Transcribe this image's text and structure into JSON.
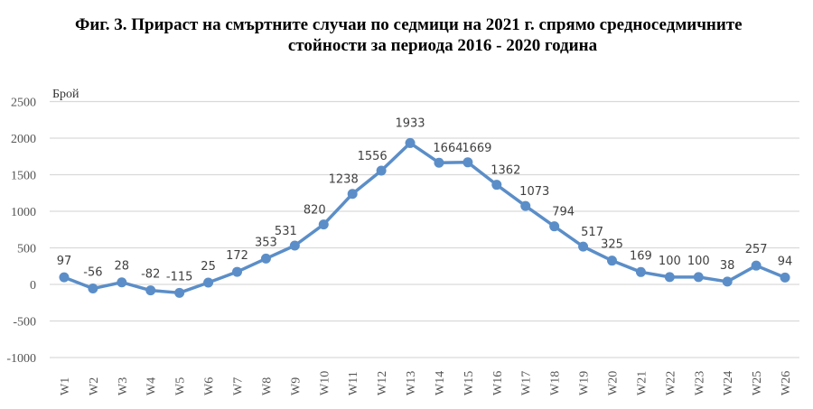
{
  "title_line1": "Фиг. 3. Прираст на смъртните случаи по седмици на 2021 г. спрямо средноседмичните",
  "title_line2": "стойности за периода 2016 - 2020 година",
  "chart_data": {
    "type": "line",
    "title": "Фиг. 3. Прираст на смъртните случаи по седмици на 2021 г. спрямо средноседмичните стойности за периода 2016 - 2020 година",
    "ylabel": "Брой",
    "xlabel": "",
    "ylim": [
      -1000,
      2500
    ],
    "yticks": [
      2500,
      2000,
      1500,
      1000,
      500,
      0,
      -500,
      -1000
    ],
    "grid": true,
    "categories": [
      "W1",
      "W2",
      "W3",
      "W4",
      "W5",
      "W6",
      "W7",
      "W8",
      "W9",
      "W10",
      "W11",
      "W12",
      "W13",
      "W14",
      "W15",
      "W16",
      "W17",
      "W18",
      "W19",
      "W20",
      "W21",
      "W22",
      "W23",
      "W24",
      "W25",
      "W26"
    ],
    "values": [
      97,
      -56,
      28,
      -82,
      -115,
      25,
      172,
      353,
      531,
      820,
      1238,
      1556,
      1933,
      1664,
      1669,
      1362,
      1073,
      794,
      517,
      325,
      169,
      100,
      100,
      38,
      257,
      94
    ],
    "color": "#5b8ec8"
  }
}
